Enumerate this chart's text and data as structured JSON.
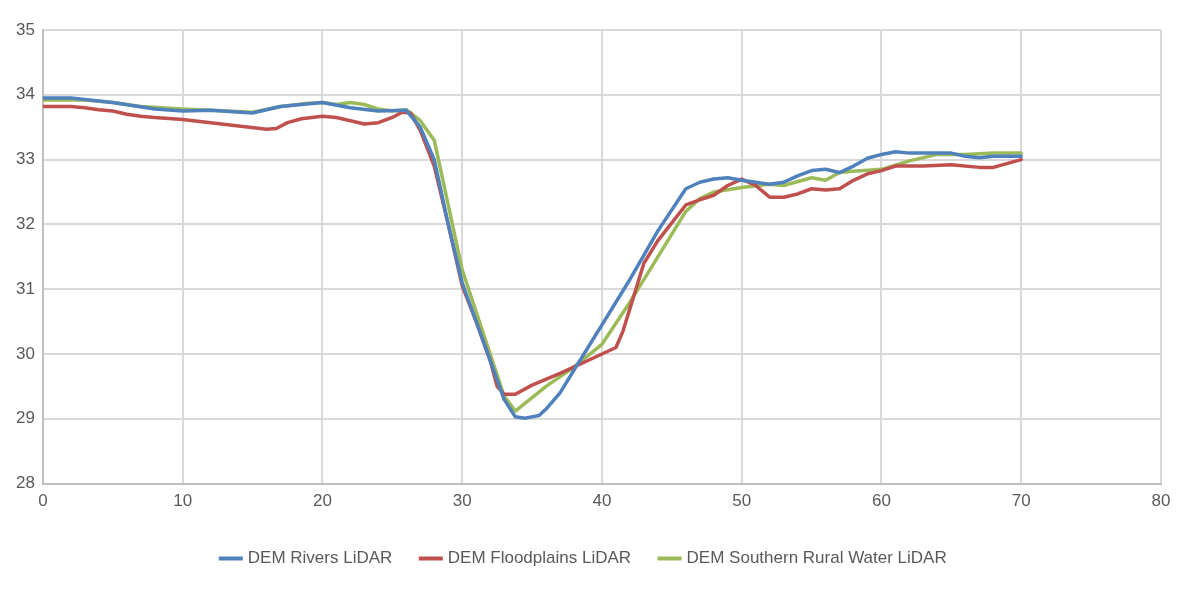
{
  "chart_data": {
    "type": "line",
    "xlim": [
      0,
      80
    ],
    "xticks": [
      0,
      10,
      20,
      30,
      40,
      50,
      60,
      70,
      80
    ],
    "ylim": [
      28,
      35
    ],
    "yticks": [
      28,
      29,
      30,
      31,
      32,
      33,
      34,
      35
    ],
    "grid": true,
    "legend": "bottom",
    "marker": "none",
    "line_style": "solid",
    "series": [
      {
        "name": "DEM Rivers LiDAR",
        "color": "#4f81bd",
        "x": [
          0,
          2,
          5,
          8,
          10,
          12,
          15,
          17,
          20,
          22,
          24,
          26,
          27,
          28,
          29,
          30,
          32,
          33,
          33.8,
          34.5,
          35.5,
          36,
          37,
          38,
          39,
          40,
          42,
          44,
          46,
          47,
          48,
          49,
          50,
          51,
          52,
          53,
          54,
          55,
          56,
          57,
          58,
          59,
          60,
          61,
          62,
          64,
          65,
          66,
          67,
          68,
          70
        ],
        "values": [
          33.95,
          33.95,
          33.88,
          33.78,
          33.75,
          33.76,
          33.72,
          33.82,
          33.88,
          33.8,
          33.75,
          33.76,
          33.5,
          33.0,
          32.0,
          31.1,
          29.9,
          29.3,
          29.03,
          29.01,
          29.05,
          29.15,
          29.4,
          29.75,
          30.1,
          30.45,
          31.15,
          31.9,
          32.55,
          32.65,
          32.7,
          32.72,
          32.68,
          32.65,
          32.62,
          32.65,
          32.75,
          32.83,
          32.85,
          32.8,
          32.9,
          33.02,
          33.08,
          33.12,
          33.1,
          33.1,
          33.1,
          33.05,
          33.03,
          33.05,
          33.05
        ]
      },
      {
        "name": "DEM Floodplains LiDAR",
        "color": "#c0504d",
        "x": [
          0,
          2,
          3,
          4,
          5,
          6,
          7,
          8,
          10,
          12,
          14,
          16,
          16.7,
          17.5,
          18.5,
          20,
          21,
          22,
          23,
          24,
          25,
          25.7,
          26.3,
          27,
          28,
          29,
          30,
          31,
          32,
          32.5,
          33,
          33.8,
          35,
          37,
          39,
          40,
          41,
          41.5,
          42,
          43,
          44,
          46,
          47,
          48,
          49,
          50,
          51,
          52,
          53,
          54,
          55,
          56,
          57,
          58,
          59,
          60,
          61,
          63,
          65,
          67,
          68,
          70
        ],
        "values": [
          33.82,
          33.82,
          33.8,
          33.77,
          33.75,
          33.7,
          33.67,
          33.65,
          33.62,
          33.57,
          33.52,
          33.47,
          33.48,
          33.57,
          33.63,
          33.67,
          33.65,
          33.6,
          33.55,
          33.57,
          33.65,
          33.73,
          33.72,
          33.45,
          32.9,
          32.0,
          31.05,
          30.5,
          29.9,
          29.5,
          29.38,
          29.38,
          29.52,
          29.7,
          29.9,
          30.0,
          30.1,
          30.35,
          30.7,
          31.4,
          31.75,
          32.3,
          32.38,
          32.45,
          32.6,
          32.7,
          32.6,
          32.42,
          32.42,
          32.47,
          32.55,
          32.53,
          32.55,
          32.68,
          32.78,
          32.83,
          32.9,
          32.9,
          32.92,
          32.88,
          32.88,
          33.0
        ]
      },
      {
        "name": "DEM Southern Rural Water LiDAR",
        "color": "#9bbb59",
        "x": [
          0,
          3,
          5,
          7,
          10,
          12,
          15,
          17,
          19,
          20,
          21,
          22,
          23,
          24,
          25,
          26,
          27,
          28,
          29,
          30,
          32,
          33,
          33.8,
          36,
          38,
          40,
          42,
          44,
          46,
          47,
          48,
          50,
          52,
          53,
          55,
          56,
          57,
          58,
          60,
          62,
          64,
          66,
          68,
          70
        ],
        "values": [
          33.92,
          33.92,
          33.88,
          33.82,
          33.78,
          33.76,
          33.73,
          33.82,
          33.87,
          33.88,
          33.85,
          33.88,
          33.85,
          33.78,
          33.75,
          33.77,
          33.6,
          33.3,
          32.3,
          31.3,
          30.0,
          29.35,
          29.12,
          29.5,
          29.8,
          30.15,
          30.8,
          31.5,
          32.2,
          32.4,
          32.5,
          32.57,
          32.62,
          32.6,
          32.72,
          32.68,
          32.8,
          32.82,
          32.85,
          32.98,
          33.08,
          33.08,
          33.1,
          33.1
        ]
      }
    ]
  }
}
